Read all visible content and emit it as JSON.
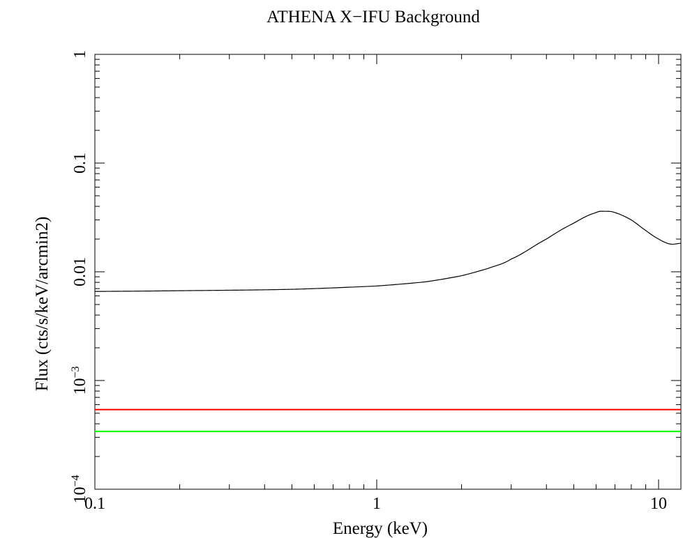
{
  "chart_data": {
    "type": "line",
    "title": "ATHENA X−IFU Background",
    "xlabel": "Energy (keV)",
    "ylabel": "Flux (cts/s/keV/arcmin2)",
    "xscale": "log",
    "yscale": "log",
    "xlim": [
      0.1,
      12
    ],
    "ylim": [
      0.0001,
      1
    ],
    "grid": false,
    "x_ticks": [
      {
        "value": 0.1,
        "label": "0.1"
      },
      {
        "value": 1,
        "label": "1"
      },
      {
        "value": 10,
        "label": "10"
      }
    ],
    "y_ticks": [
      {
        "value": 0.0001,
        "base": "10",
        "exp": "−4"
      },
      {
        "value": 0.001,
        "base": "10",
        "exp": "−3"
      },
      {
        "value": 0.01,
        "label": "0.01"
      },
      {
        "value": 0.1,
        "label": "0.1"
      },
      {
        "value": 1,
        "label": "1"
      }
    ],
    "series": [
      {
        "color": "#000000",
        "x": [
          0.1,
          0.2,
          0.5,
          1.0,
          1.5,
          2.0,
          2.5,
          3.0,
          4.0,
          5.0,
          6.0,
          6.5,
          7.0,
          8.0,
          9.0,
          10.0,
          11.0,
          12.0
        ],
        "y": [
          0.0066,
          0.0067,
          0.0069,
          0.0074,
          0.0081,
          0.0092,
          0.0108,
          0.0131,
          0.02,
          0.028,
          0.035,
          0.036,
          0.035,
          0.03,
          0.024,
          0.02,
          0.018,
          0.0183
        ]
      },
      {
        "color": "#ff0000",
        "x": [
          0.1,
          12.0
        ],
        "y": [
          0.00054,
          0.00054
        ]
      },
      {
        "color": "#00ff00",
        "x": [
          0.1,
          12.0
        ],
        "y": [
          0.00034,
          0.00034
        ]
      }
    ]
  }
}
